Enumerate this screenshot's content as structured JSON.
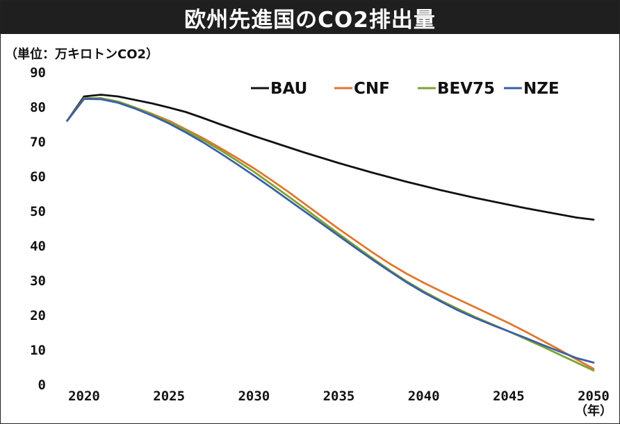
{
  "chart_data": {
    "type": "line",
    "title": "欧州先進国のCO2排出量",
    "ylabel": "（単位：万キロトンCO2）",
    "xlabel": "（年）",
    "ylim": [
      0,
      90
    ],
    "xlim": [
      2020,
      2050
    ],
    "grid": false,
    "legend_position": "top-right",
    "yticks": [
      "0",
      "10",
      "20",
      "30",
      "40",
      "50",
      "60",
      "70",
      "80",
      "90"
    ],
    "xticks": [
      "2020",
      "2025",
      "2030",
      "2035",
      "2040",
      "2045",
      "2050"
    ],
    "x": [
      2019,
      2020,
      2021,
      2022,
      2023,
      2024,
      2025,
      2026,
      2027,
      2028,
      2029,
      2030,
      2031,
      2032,
      2033,
      2034,
      2035,
      2036,
      2037,
      2038,
      2039,
      2040,
      2041,
      2042,
      2043,
      2044,
      2045,
      2046,
      2047,
      2048,
      2049,
      2050
    ],
    "series": [
      {
        "name": "BAU",
        "color": "#111111",
        "values": [
          76,
          83,
          83.5,
          83,
          82,
          81,
          79.8,
          78.5,
          76.8,
          75,
          73.3,
          71.6,
          70,
          68.4,
          66.8,
          65.3,
          63.8,
          62.4,
          61,
          59.7,
          58.4,
          57.2,
          56,
          54.9,
          53.8,
          52.8,
          51.8,
          50.8,
          49.9,
          49,
          48.1,
          47.5
        ]
      },
      {
        "name": "CNF",
        "color": "#e0762f",
        "values": [
          76,
          82.5,
          82.5,
          81.5,
          79.8,
          78,
          76,
          73.5,
          71,
          68.2,
          65.3,
          62.3,
          59,
          55.6,
          52,
          48.4,
          44.8,
          41.4,
          38,
          34.8,
          31.9,
          29.3,
          26.9,
          24.6,
          22.3,
          20,
          17.7,
          15.2,
          12.6,
          10,
          7.2,
          4.5
        ]
      },
      {
        "name": "BEV75",
        "color": "#7aa332",
        "values": [
          76,
          82.5,
          82.5,
          81.5,
          79.8,
          77.8,
          75.6,
          73.2,
          70.5,
          67.6,
          64.5,
          61.3,
          57.8,
          54.3,
          50.7,
          47,
          43.4,
          39.8,
          36.3,
          32.9,
          29.7,
          26.8,
          24.2,
          21.8,
          19.5,
          17.4,
          15.3,
          13.1,
          10.9,
          8.6,
          6.3,
          4
        ]
      },
      {
        "name": "NZE",
        "color": "#3a5fa5",
        "values": [
          76,
          82.3,
          82.2,
          81.2,
          79.5,
          77.5,
          75.2,
          72.6,
          69.8,
          66.7,
          63.5,
          60.2,
          56.8,
          53.3,
          49.8,
          46.3,
          42.8,
          39.3,
          35.9,
          32.6,
          29.4,
          26.5,
          23.9,
          21.4,
          19.2,
          17.2,
          15.3,
          13.4,
          11.4,
          9.5,
          7.6,
          6.3
        ]
      }
    ]
  }
}
